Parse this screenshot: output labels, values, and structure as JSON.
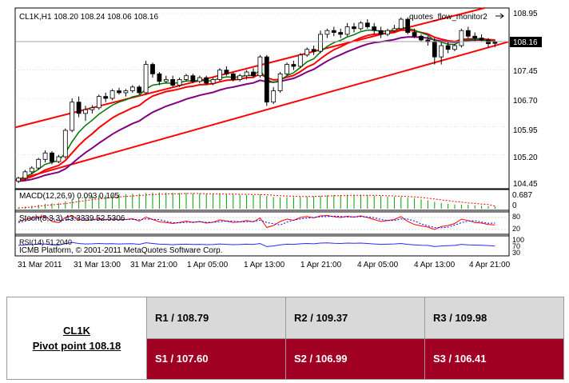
{
  "chart": {
    "header": "CL1K,H1  108.20 108.24 108.06 108.16",
    "indicator_name": "quotes_flow_monitor2",
    "current_price_label": "108.16",
    "price_ticks": [
      "108.95",
      "108.16",
      "107.45",
      "106.70",
      "105.95",
      "105.20",
      "104.45"
    ],
    "macd_label": "MACD(12,26,9) 0.093 0.105",
    "macd_scale": [
      "0.687",
      "0"
    ],
    "stoch_label": "Stoch(8,3,3) 43.3339 52.5306",
    "stoch_scale": [
      "80",
      "20"
    ],
    "rsi_label": "RSI(14) 51.2040",
    "rsi_scale": [
      "100",
      "70",
      "30"
    ],
    "copyright": "ICMB Platform, © 2001-2011 MetaQuotes Software Corp.",
    "x_labels": [
      "31 Mar 2011",
      "31 Mar 13:00",
      "31 Mar 21:00",
      "1 Apr 05:00",
      "1 Apr 13:00",
      "1 Apr 21:00",
      "4 Apr 05:00",
      "4 Apr 13:00",
      "4 Apr 21:00"
    ]
  },
  "chart_data": {
    "type": "candlestick",
    "symbol": "CL1K",
    "timeframe": "H1",
    "y_range": [
      104.45,
      108.95
    ],
    "ohlc": [
      [
        104.5,
        104.62,
        104.45,
        104.58
      ],
      [
        104.58,
        104.8,
        104.52,
        104.75
      ],
      [
        104.75,
        104.9,
        104.68,
        104.85
      ],
      [
        104.85,
        105.12,
        104.8,
        105.08
      ],
      [
        105.08,
        105.32,
        105.0,
        105.25
      ],
      [
        105.25,
        105.3,
        104.95,
        105.02
      ],
      [
        105.02,
        105.2,
        104.98,
        105.15
      ],
      [
        105.15,
        105.9,
        105.1,
        105.85
      ],
      [
        105.85,
        106.7,
        105.8,
        106.6
      ],
      [
        106.6,
        106.75,
        106.2,
        106.3
      ],
      [
        106.3,
        106.5,
        106.1,
        106.4
      ],
      [
        106.4,
        106.52,
        106.3,
        106.45
      ],
      [
        106.45,
        106.8,
        106.4,
        106.75
      ],
      [
        106.75,
        106.85,
        106.6,
        106.7
      ],
      [
        106.7,
        106.95,
        106.65,
        106.9
      ],
      [
        106.9,
        106.98,
        106.8,
        106.85
      ],
      [
        106.85,
        106.95,
        106.75,
        106.9
      ],
      [
        106.9,
        107.05,
        106.85,
        107.0
      ],
      [
        107.0,
        107.05,
        106.8,
        106.85
      ],
      [
        106.85,
        107.7,
        106.8,
        107.6
      ],
      [
        107.6,
        107.65,
        107.25,
        107.35
      ],
      [
        107.35,
        107.4,
        107.05,
        107.15
      ],
      [
        107.15,
        107.3,
        107.1,
        107.2
      ],
      [
        107.2,
        107.3,
        107.0,
        107.05
      ],
      [
        107.05,
        107.25,
        107.0,
        107.2
      ],
      [
        107.2,
        107.35,
        107.15,
        107.3
      ],
      [
        107.3,
        107.35,
        107.1,
        107.15
      ],
      [
        107.15,
        107.3,
        107.1,
        107.25
      ],
      [
        107.25,
        107.3,
        107.05,
        107.1
      ],
      [
        107.1,
        107.25,
        107.05,
        107.2
      ],
      [
        107.2,
        107.5,
        107.15,
        107.45
      ],
      [
        107.45,
        107.55,
        107.3,
        107.35
      ],
      [
        107.35,
        107.4,
        107.15,
        107.2
      ],
      [
        107.2,
        107.35,
        107.15,
        107.3
      ],
      [
        107.3,
        107.45,
        107.2,
        107.4
      ],
      [
        107.4,
        107.5,
        107.25,
        107.3
      ],
      [
        107.3,
        107.85,
        107.25,
        107.8
      ],
      [
        107.8,
        107.85,
        106.5,
        106.6
      ],
      [
        106.6,
        107.0,
        106.55,
        106.9
      ],
      [
        106.9,
        107.4,
        106.85,
        107.35
      ],
      [
        107.35,
        107.65,
        107.3,
        107.6
      ],
      [
        107.6,
        107.7,
        107.45,
        107.55
      ],
      [
        107.55,
        107.9,
        107.5,
        107.85
      ],
      [
        107.85,
        108.05,
        107.8,
        108.0
      ],
      [
        108.0,
        108.1,
        107.85,
        107.95
      ],
      [
        107.95,
        108.5,
        107.9,
        108.4
      ],
      [
        108.4,
        108.55,
        108.3,
        108.5
      ],
      [
        108.5,
        108.6,
        108.35,
        108.45
      ],
      [
        108.45,
        108.55,
        108.3,
        108.4
      ],
      [
        108.4,
        108.7,
        108.35,
        108.6
      ],
      [
        108.6,
        108.7,
        108.45,
        108.55
      ],
      [
        108.55,
        108.75,
        108.5,
        108.7
      ],
      [
        108.7,
        108.8,
        108.55,
        108.6
      ],
      [
        108.6,
        108.7,
        108.4,
        108.5
      ],
      [
        108.5,
        108.6,
        108.3,
        108.4
      ],
      [
        108.4,
        108.55,
        108.35,
        108.5
      ],
      [
        108.5,
        108.65,
        108.45,
        108.55
      ],
      [
        108.55,
        108.85,
        108.5,
        108.8
      ],
      [
        108.8,
        108.85,
        108.4,
        108.45
      ],
      [
        108.45,
        108.55,
        108.3,
        108.35
      ],
      [
        108.35,
        108.4,
        108.2,
        108.25
      ],
      [
        108.25,
        108.35,
        108.1,
        108.2
      ],
      [
        108.2,
        108.3,
        107.6,
        107.8
      ],
      [
        107.8,
        108.2,
        107.6,
        108.1
      ],
      [
        108.1,
        108.2,
        107.9,
        108.0
      ],
      [
        108.0,
        108.15,
        107.95,
        108.1
      ],
      [
        108.1,
        108.55,
        108.05,
        108.5
      ],
      [
        108.5,
        108.6,
        108.3,
        108.35
      ],
      [
        108.35,
        108.45,
        108.2,
        108.3
      ],
      [
        108.3,
        108.4,
        108.2,
        108.25
      ],
      [
        108.25,
        108.3,
        108.05,
        108.15
      ],
      [
        108.2,
        108.24,
        108.06,
        108.16
      ]
    ],
    "ma_fast": [
      104.55,
      104.62,
      104.7,
      104.82,
      104.95,
      105.0,
      105.05,
      105.25,
      105.55,
      105.8,
      105.98,
      106.12,
      106.28,
      106.4,
      106.52,
      106.6,
      106.66,
      106.74,
      106.78,
      106.95,
      107.05,
      107.08,
      107.11,
      107.1,
      107.12,
      107.16,
      107.16,
      107.18,
      107.16,
      107.17,
      107.24,
      107.27,
      107.26,
      107.27,
      107.31,
      107.31,
      107.45,
      107.2,
      107.12,
      107.18,
      107.3,
      107.38,
      107.52,
      107.67,
      107.75,
      107.93,
      108.08,
      108.18,
      108.24,
      108.33,
      108.39,
      108.47,
      108.51,
      108.51,
      108.48,
      108.49,
      108.51,
      108.59,
      108.56,
      108.51,
      108.44,
      108.38,
      108.23,
      108.19,
      108.14,
      108.13,
      108.23,
      108.26,
      108.27,
      108.26,
      108.23,
      108.21
    ],
    "ma_mid": [
      104.52,
      104.56,
      104.62,
      104.7,
      104.8,
      104.86,
      104.92,
      105.05,
      105.25,
      105.45,
      105.62,
      105.76,
      105.92,
      106.05,
      106.18,
      106.28,
      106.36,
      106.45,
      106.51,
      106.65,
      106.76,
      106.82,
      106.88,
      106.91,
      106.95,
      107.0,
      107.02,
      107.06,
      107.07,
      107.09,
      107.14,
      107.18,
      107.19,
      107.21,
      107.25,
      107.26,
      107.35,
      107.25,
      107.19,
      107.2,
      107.26,
      107.31,
      107.41,
      107.53,
      107.61,
      107.75,
      107.88,
      107.99,
      108.07,
      108.16,
      108.23,
      108.31,
      108.37,
      108.4,
      108.41,
      108.43,
      108.45,
      108.51,
      108.51,
      108.49,
      108.45,
      108.41,
      108.32,
      108.27,
      108.23,
      108.21,
      108.26,
      108.28,
      108.28,
      108.28,
      108.26,
      108.25
    ],
    "ma_slow": [
      104.5,
      104.52,
      104.55,
      104.6,
      104.66,
      104.7,
      104.74,
      104.83,
      104.97,
      105.12,
      105.26,
      105.38,
      105.51,
      105.63,
      105.75,
      105.85,
      105.94,
      106.03,
      106.1,
      106.22,
      106.33,
      106.41,
      106.49,
      106.55,
      106.61,
      106.68,
      106.73,
      106.78,
      106.82,
      106.86,
      106.92,
      106.97,
      107.0,
      107.04,
      107.08,
      107.11,
      107.18,
      107.14,
      107.13,
      107.15,
      107.19,
      107.23,
      107.31,
      107.4,
      107.47,
      107.58,
      107.69,
      107.78,
      107.86,
      107.94,
      108.01,
      108.08,
      108.14,
      108.18,
      108.2,
      108.23,
      108.26,
      108.31,
      108.33,
      108.33,
      108.32,
      108.3,
      108.25,
      108.22,
      108.2,
      108.19,
      108.22,
      108.24,
      108.25,
      108.25,
      108.24,
      108.24
    ],
    "channel_upper": [
      [
        0,
        105.95
      ],
      [
        75,
        109.35
      ]
    ],
    "channel_lower": [
      [
        0,
        104.55
      ],
      [
        75,
        108.3
      ]
    ],
    "macd_values": [
      0.05,
      0.08,
      0.12,
      0.16,
      0.2,
      0.22,
      0.24,
      0.3,
      0.38,
      0.44,
      0.48,
      0.51,
      0.54,
      0.56,
      0.58,
      0.59,
      0.6,
      0.61,
      0.61,
      0.64,
      0.66,
      0.66,
      0.66,
      0.65,
      0.64,
      0.64,
      0.63,
      0.62,
      0.61,
      0.6,
      0.6,
      0.59,
      0.58,
      0.57,
      0.57,
      0.56,
      0.58,
      0.52,
      0.48,
      0.47,
      0.47,
      0.47,
      0.48,
      0.5,
      0.51,
      0.53,
      0.55,
      0.56,
      0.56,
      0.57,
      0.57,
      0.57,
      0.56,
      0.54,
      0.52,
      0.5,
      0.48,
      0.48,
      0.45,
      0.42,
      0.38,
      0.34,
      0.28,
      0.24,
      0.2,
      0.17,
      0.17,
      0.16,
      0.14,
      0.12,
      0.1,
      0.09
    ],
    "macd_signal": [
      0.03,
      0.05,
      0.07,
      0.1,
      0.13,
      0.16,
      0.18,
      0.21,
      0.25,
      0.29,
      0.33,
      0.37,
      0.4,
      0.43,
      0.46,
      0.48,
      0.5,
      0.52,
      0.54,
      0.56,
      0.58,
      0.59,
      0.6,
      0.61,
      0.61,
      0.62,
      0.62,
      0.62,
      0.61,
      0.61,
      0.61,
      0.6,
      0.6,
      0.59,
      0.59,
      0.58,
      0.58,
      0.57,
      0.55,
      0.53,
      0.52,
      0.51,
      0.5,
      0.5,
      0.5,
      0.51,
      0.52,
      0.53,
      0.53,
      0.54,
      0.55,
      0.55,
      0.55,
      0.55,
      0.54,
      0.53,
      0.52,
      0.51,
      0.5,
      0.48,
      0.46,
      0.43,
      0.4,
      0.36,
      0.33,
      0.29,
      0.27,
      0.24,
      0.22,
      0.19,
      0.17,
      0.105
    ],
    "stoch_k": [
      60,
      70,
      78,
      82,
      85,
      60,
      55,
      80,
      88,
      70,
      65,
      68,
      75,
      70,
      72,
      68,
      70,
      74,
      62,
      82,
      70,
      58,
      55,
      50,
      55,
      62,
      55,
      60,
      52,
      56,
      68,
      62,
      55,
      58,
      65,
      58,
      78,
      30,
      40,
      60,
      72,
      66,
      80,
      85,
      78,
      88,
      90,
      84,
      80,
      86,
      82,
      88,
      80,
      70,
      60,
      65,
      70,
      85,
      60,
      45,
      38,
      32,
      20,
      35,
      40,
      50,
      72,
      65,
      55,
      52,
      45,
      43
    ],
    "stoch_d": [
      55,
      62,
      70,
      77,
      82,
      76,
      67,
      65,
      74,
      79,
      74,
      68,
      69,
      71,
      72,
      70,
      70,
      71,
      69,
      73,
      71,
      70,
      61,
      54,
      53,
      56,
      57,
      59,
      56,
      56,
      59,
      62,
      62,
      58,
      59,
      60,
      67,
      55,
      49,
      43,
      57,
      66,
      73,
      77,
      81,
      84,
      85,
      87,
      85,
      83,
      83,
      85,
      83,
      79,
      70,
      65,
      65,
      73,
      72,
      63,
      48,
      38,
      30,
      29,
      32,
      42,
      54,
      62,
      64,
      57,
      51,
      52.53
    ],
    "rsi": [
      55,
      58,
      60,
      62,
      63,
      58,
      57,
      65,
      72,
      66,
      63,
      64,
      66,
      64,
      65,
      63,
      64,
      65,
      61,
      70,
      66,
      62,
      61,
      59,
      61,
      62,
      60,
      61,
      59,
      60,
      63,
      61,
      59,
      60,
      62,
      60,
      66,
      48,
      52,
      58,
      62,
      61,
      64,
      66,
      64,
      68,
      69,
      67,
      66,
      68,
      67,
      68,
      66,
      63,
      61,
      62,
      63,
      66,
      61,
      58,
      56,
      55,
      48,
      52,
      53,
      55,
      61,
      58,
      57,
      56,
      54,
      51.2
    ]
  },
  "pivot": {
    "symbol": "CL1K",
    "pivot_label": "Pivot point 108.18",
    "r1": "R1 / 108.79",
    "r2": "R2  / 109.37",
    "r3": "R3 / 109.98",
    "s1": "S1 / 107.60",
    "s2": "S2 /  106.99",
    "s3": "S3 /  106.41"
  },
  "colors": {
    "up_candle": "#ffffff",
    "down_candle": "#000000",
    "ma_fast": "#007700",
    "ma_mid": "#ff0000",
    "ma_slow": "#800080",
    "channel": "#ff0000",
    "macd_bars": "#00a000",
    "stoch_main": "#ff0000",
    "stoch_signal": "#0000ff",
    "rsi": "#2a2aff",
    "support_bg": "#a00022",
    "resistance_bg": "#d9d9d9"
  }
}
